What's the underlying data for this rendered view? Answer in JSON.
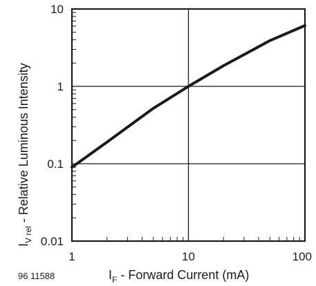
{
  "figure_id": "96 11588",
  "chart_data": {
    "type": "line",
    "x_scale": "log",
    "y_scale": "log",
    "xlim": [
      1,
      100
    ],
    "ylim": [
      0.01,
      10
    ],
    "x_ticks": [
      1,
      10,
      100
    ],
    "y_ticks": [
      0.01,
      0.1,
      1,
      10
    ],
    "x_tick_labels": [
      "1",
      "10",
      "100"
    ],
    "y_tick_labels": [
      "0.01",
      "0.1",
      "1",
      "10"
    ],
    "xlabel": {
      "main": "I",
      "sub": "F",
      "rest": " - Forward Current (mA)"
    },
    "ylabel": {
      "main": "I",
      "sub": "V rel",
      "rest": " - Relative Luminous Intensity"
    },
    "grid": "major",
    "series": [
      {
        "x": [
          1,
          2,
          5,
          10,
          20,
          50,
          100
        ],
        "y": [
          0.09,
          0.19,
          0.52,
          1.0,
          1.85,
          3.9,
          6.1
        ]
      }
    ]
  }
}
